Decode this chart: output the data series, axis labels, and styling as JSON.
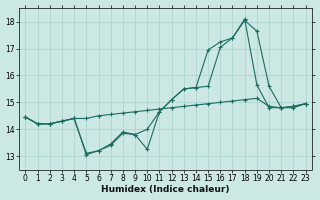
{
  "xlabel": "Humidex (Indice chaleur)",
  "background_color": "#cce8e4",
  "grid_color": "#b0d4d0",
  "line_color": "#1a6b60",
  "xlim": [
    -0.5,
    23.5
  ],
  "ylim": [
    12.5,
    18.5
  ],
  "yticks": [
    13,
    14,
    15,
    16,
    17,
    18
  ],
  "xticks": [
    0,
    1,
    2,
    3,
    4,
    5,
    6,
    7,
    8,
    9,
    10,
    11,
    12,
    13,
    14,
    15,
    16,
    17,
    18,
    19,
    20,
    21,
    22,
    23
  ],
  "series": [
    {
      "x": [
        0,
        1,
        2,
        3,
        4,
        5,
        6,
        7,
        8,
        9,
        10,
        11,
        12,
        13,
        14,
        15,
        16,
        17,
        18,
        19,
        20,
        21,
        22,
        23
      ],
      "y": [
        14.45,
        14.2,
        14.2,
        14.3,
        14.4,
        14.4,
        14.5,
        14.55,
        14.6,
        14.65,
        14.7,
        14.75,
        14.8,
        14.85,
        14.9,
        14.95,
        15.0,
        15.05,
        15.1,
        15.15,
        14.85,
        14.8,
        14.85,
        14.95
      ]
    },
    {
      "x": [
        0,
        1,
        2,
        3,
        4,
        5,
        6,
        7,
        8,
        9,
        10,
        11,
        12,
        13,
        14,
        15,
        16,
        17,
        18,
        19,
        20,
        21,
        22,
        23
      ],
      "y": [
        14.45,
        14.2,
        14.2,
        14.3,
        14.4,
        13.1,
        13.2,
        13.45,
        13.9,
        13.8,
        14.0,
        14.65,
        15.1,
        15.5,
        15.55,
        16.95,
        17.25,
        17.4,
        18.1,
        15.65,
        14.8,
        14.8,
        14.85,
        14.95
      ]
    },
    {
      "x": [
        0,
        1,
        2,
        3,
        4,
        5,
        6,
        7,
        8,
        9,
        10,
        11,
        12,
        13,
        14,
        15,
        16,
        17,
        18,
        19,
        20,
        21,
        22,
        23
      ],
      "y": [
        14.45,
        14.2,
        14.2,
        14.3,
        14.4,
        13.05,
        13.2,
        13.4,
        13.85,
        13.8,
        13.25,
        14.65,
        15.1,
        15.5,
        15.55,
        15.6,
        17.05,
        17.4,
        18.05,
        17.65,
        15.6,
        14.8,
        14.8,
        14.95
      ]
    }
  ]
}
